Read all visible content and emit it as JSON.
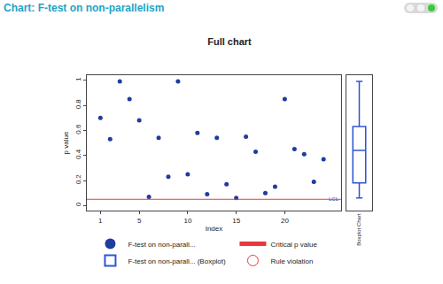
{
  "header": {
    "title": "Chart: F-test on non-parallelism"
  },
  "chart_data": {
    "type": "scatter",
    "title": "Full chart",
    "x_label": "Index",
    "y_label": "p value",
    "x": [
      1,
      2,
      3,
      4,
      5,
      6,
      7,
      8,
      9,
      10,
      11,
      12,
      13,
      14,
      15,
      16,
      17,
      18,
      19,
      20,
      21,
      22,
      23,
      24
    ],
    "series": [
      {
        "name": "F-test on non-parall...",
        "color": "#1f3c9e",
        "marker": "circle",
        "values": [
          0.7,
          0.53,
          0.99,
          0.85,
          0.68,
          0.07,
          0.54,
          0.23,
          0.99,
          0.25,
          0.58,
          0.09,
          0.54,
          0.17,
          0.06,
          0.55,
          0.43,
          0.1,
          0.15,
          0.85,
          0.45,
          0.41,
          0.19,
          0.37
        ]
      }
    ],
    "box": {
      "name": "F-test on non-parall... (Boxplot)",
      "color": "#2f55d4",
      "label": "Boxplot Chart"
    },
    "critical": {
      "name": "Critical p value",
      "value": 0.05,
      "color": "#e8383d",
      "line_style": "solid"
    },
    "rule_violation": {
      "name": "Rule violation",
      "color": "#e8383d",
      "marker": "circle-open"
    },
    "annotation": {
      "text": "LCL",
      "x": 24,
      "y": 0.05
    },
    "xlim": [
      -0.4,
      25.8
    ],
    "xticks": [
      1,
      5,
      10,
      15,
      20
    ],
    "ylim": [
      -0.04,
      1.04
    ],
    "yticks": [
      0,
      0.2,
      0.4,
      0.6,
      0.8,
      1
    ],
    "grid": false,
    "legend": "bottom"
  }
}
